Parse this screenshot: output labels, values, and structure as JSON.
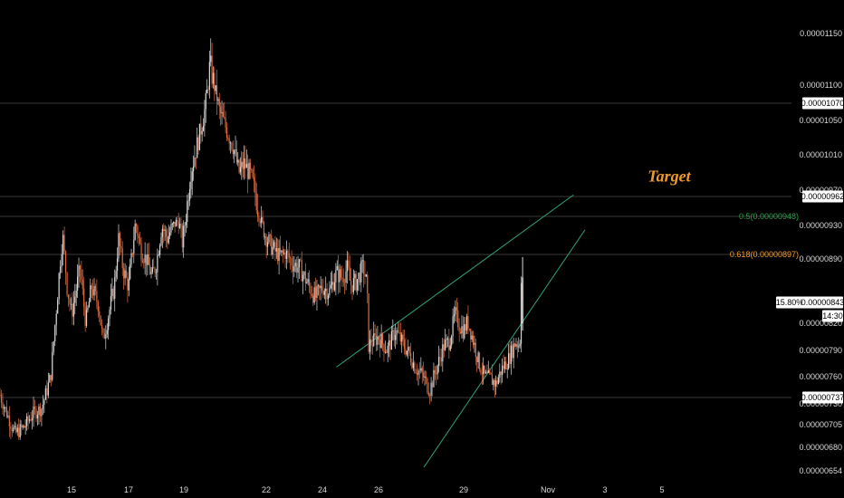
{
  "chart_data": {
    "type": "candlestick",
    "colors": {
      "background": "#000000",
      "candle_up": "#d8d8d8",
      "candle_down": "#e06a3c",
      "trendline": "#2fa37a",
      "hline": "#3a3a3a",
      "fib_05": "#2f9e4f",
      "fib_0618": "#f29b2a",
      "target": "#ef9b2b",
      "price_tag_bg": "#ffffff",
      "price_tag_text": "#000000"
    },
    "x_axis": {
      "ticks": [
        {
          "label": "15",
          "t": 15
        },
        {
          "label": "17",
          "t": 17
        },
        {
          "label": "19",
          "t": 19
        },
        {
          "label": "22",
          "t": 22
        },
        {
          "label": "24",
          "t": 24
        },
        {
          "label": "26",
          "t": 26
        },
        {
          "label": "29",
          "t": 29
        },
        {
          "label": "Nov",
          "t": 32
        },
        {
          "label": "3",
          "t": 34
        },
        {
          "label": "5",
          "t": 36
        }
      ],
      "range": [
        12.6,
        39.2
      ]
    },
    "y_axis": {
      "ticks": [
        {
          "label": "0.00001150",
          "v": 1.15e-05
        },
        {
          "label": "0.00001100",
          "v": 1.1e-05
        },
        {
          "label": "0.00001050",
          "v": 1.05e-05
        },
        {
          "label": "0.00001010",
          "v": 1.01e-05
        },
        {
          "label": "0.00000970",
          "v": 9.7e-06
        },
        {
          "label": "0.00000930",
          "v": 9.3e-06
        },
        {
          "label": "0.00000890",
          "v": 8.9e-06
        },
        {
          "label": "0.00000820",
          "v": 8.2e-06
        },
        {
          "label": "0.00000790",
          "v": 7.9e-06
        },
        {
          "label": "0.00000760",
          "v": 7.6e-06
        },
        {
          "label": "0.00000730",
          "v": 7.3e-06
        },
        {
          "label": "0.00000705",
          "v": 7.05e-06
        },
        {
          "label": "0.00000680",
          "v": 6.8e-06
        },
        {
          "label": "0.00000654",
          "v": 6.54e-06
        }
      ]
    },
    "horizontal_levels": [
      {
        "label": "0.00001070",
        "v": 1.07e-05
      },
      {
        "label": "0.00000962",
        "v": 9.62e-06
      },
      {
        "label": "0.00000737",
        "v": 7.37e-06
      }
    ],
    "fib_levels": [
      {
        "label": "0.5(0.00000948)",
        "v": 9.48e-06,
        "color_key": "fib_05"
      },
      {
        "label": "0.618(0.00000897)",
        "v": 8.97e-06,
        "color_key": "fib_0618"
      }
    ],
    "current_price": {
      "label": "0.00000843",
      "v": 8.43e-06,
      "change_label": "15.80%",
      "time_label": "14:30"
    },
    "annotation": {
      "text": "Target",
      "t": 35.5,
      "v": 9.86e-06
    },
    "trendlines": [
      {
        "from": [
          24.5,
          7.71e-06
        ],
        "to": [
          32.9,
          9.64e-06
        ]
      },
      {
        "from": [
          27.6,
          6.58e-06
        ],
        "to": [
          33.3,
          9.25e-06
        ]
      }
    ],
    "price_path": [
      [
        12.6,
        7.4e-06
      ],
      [
        12.9,
        7.12e-06
      ],
      [
        13.1,
        6.95e-06
      ],
      [
        13.4,
        7.02e-06
      ],
      [
        13.7,
        7.18e-06
      ],
      [
        14.0,
        7.25e-06
      ],
      [
        14.3,
        7.6e-06
      ],
      [
        14.5,
        8.4e-06
      ],
      [
        14.7,
        9.2e-06
      ],
      [
        14.85,
        8.6e-06
      ],
      [
        15.0,
        8.3e-06
      ],
      [
        15.3,
        8.8e-06
      ],
      [
        15.5,
        8.2e-06
      ],
      [
        15.7,
        8.6e-06
      ],
      [
        15.95,
        8.4e-06
      ],
      [
        16.1,
        8e-06
      ],
      [
        16.3,
        8.3e-06
      ],
      [
        16.5,
        8.6e-06
      ],
      [
        16.65,
        9.15e-06
      ],
      [
        16.8,
        8.8e-06
      ],
      [
        17.0,
        8.6e-06
      ],
      [
        17.25,
        9.35e-06
      ],
      [
        17.45,
        9e-06
      ],
      [
        17.65,
        8.9e-06
      ],
      [
        17.85,
        8.7e-06
      ],
      [
        18.0,
        8.85e-06
      ],
      [
        18.2,
        9.3e-06
      ],
      [
        18.4,
        9.15e-06
      ],
      [
        18.6,
        9.3e-06
      ],
      [
        18.8,
        9.4e-06
      ],
      [
        18.95,
        9.1e-06
      ],
      [
        19.1,
        9.5e-06
      ],
      [
        19.25,
        9.9e-06
      ],
      [
        19.4,
        1.01e-05
      ],
      [
        19.55,
        1.03e-05
      ],
      [
        19.75,
        1.06e-05
      ],
      [
        19.95,
        1.12e-05
      ],
      [
        20.1,
        1.1e-05
      ],
      [
        20.3,
        1.06e-05
      ],
      [
        20.55,
        1.04e-05
      ],
      [
        20.8,
        1.02e-05
      ],
      [
        21.0,
        9.9e-06
      ],
      [
        21.2,
        1e-05
      ],
      [
        21.45,
        9.85e-06
      ],
      [
        21.7,
        9.55e-06
      ],
      [
        21.95,
        9.2e-06
      ],
      [
        22.2,
        9.05e-06
      ],
      [
        22.45,
        8.95e-06
      ],
      [
        22.7,
        8.98e-06
      ],
      [
        22.95,
        8.85e-06
      ],
      [
        23.2,
        8.8e-06
      ],
      [
        23.5,
        8.62e-06
      ],
      [
        23.75,
        8.48e-06
      ],
      [
        24.0,
        8.6e-06
      ],
      [
        24.25,
        8.55e-06
      ],
      [
        24.5,
        8.75e-06
      ],
      [
        24.7,
        8.7e-06
      ],
      [
        24.9,
        8.8e-06
      ],
      [
        25.0,
        8.62e-06
      ],
      [
        25.2,
        8.65e-06
      ],
      [
        25.45,
        8.82e-06
      ],
      [
        25.6,
        8.6e-06
      ],
      [
        25.62,
        7.95e-06
      ],
      [
        25.8,
        8e-06
      ],
      [
        26.0,
        8.05e-06
      ],
      [
        26.3,
        7.9e-06
      ],
      [
        26.6,
        8.12e-06
      ],
      [
        26.9,
        7.95e-06
      ],
      [
        27.1,
        7.85e-06
      ],
      [
        27.3,
        7.7e-06
      ],
      [
        27.55,
        7.62e-06
      ],
      [
        27.8,
        7.45e-06
      ],
      [
        28.05,
        7.7e-06
      ],
      [
        28.3,
        7.95e-06
      ],
      [
        28.5,
        8e-06
      ],
      [
        28.7,
        8.3e-06
      ],
      [
        28.85,
        8.18e-06
      ],
      [
        29.0,
        8.12e-06
      ],
      [
        29.15,
        8.22e-06
      ],
      [
        29.35,
        8e-06
      ],
      [
        29.55,
        7.75e-06
      ],
      [
        29.75,
        7.6e-06
      ],
      [
        29.95,
        7.58e-06
      ],
      [
        30.15,
        7.52e-06
      ],
      [
        30.35,
        7.68e-06
      ],
      [
        30.6,
        7.8e-06
      ],
      [
        30.85,
        8e-06
      ],
      [
        31.0,
        7.95e-06
      ],
      [
        31.05,
        8.72e-06
      ],
      [
        31.1,
        8.43e-06
      ]
    ]
  }
}
